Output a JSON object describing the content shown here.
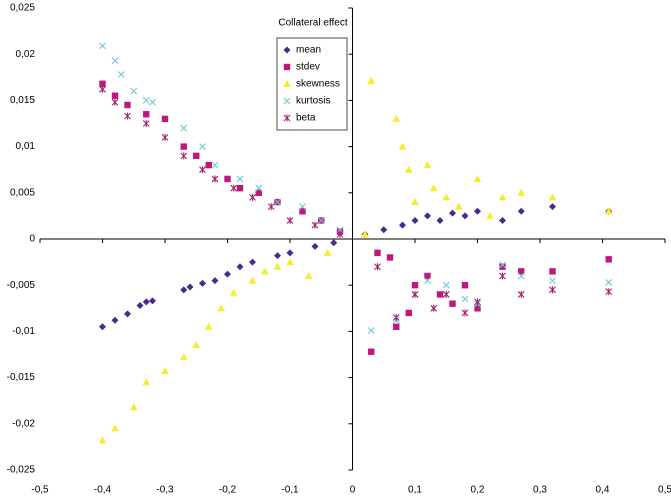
{
  "chart_data": {
    "type": "scatter",
    "legend_title": "Collateral effect",
    "xlim": [
      -0.5,
      0.5
    ],
    "ylim": [
      -0.025,
      0.025
    ],
    "xticks": [
      {
        "value": -0.5,
        "label": "-0,5"
      },
      {
        "value": -0.4,
        "label": "-0,4"
      },
      {
        "value": -0.3,
        "label": "-0,3"
      },
      {
        "value": -0.2,
        "label": "-0,2"
      },
      {
        "value": -0.1,
        "label": "-0,1"
      },
      0,
      {
        "value": 0.1,
        "label": "0,1"
      },
      {
        "value": 0.2,
        "label": "0,2"
      },
      {
        "value": 0.3,
        "label": "0,3"
      },
      {
        "value": 0.4,
        "label": "0,4"
      },
      {
        "value": 0.5,
        "label": "0,5"
      }
    ],
    "yticks": [
      {
        "value": -0.025,
        "label": "-0,025"
      },
      {
        "value": -0.02,
        "label": "-0,02"
      },
      {
        "value": -0.015,
        "label": "-0,015"
      },
      {
        "value": -0.01,
        "label": "-0,01"
      },
      {
        "value": -0.005,
        "label": "-0,005"
      },
      0,
      {
        "value": 0.005,
        "label": "0,005"
      },
      {
        "value": 0.01,
        "label": "0,01"
      },
      {
        "value": 0.015,
        "label": "0,015"
      },
      {
        "value": 0.02,
        "label": "0,02"
      },
      {
        "value": 0.025,
        "label": "0,025"
      }
    ],
    "series": [
      {
        "name": "mean",
        "color": "#4b2a8c",
        "marker": "diamond",
        "x": [
          -0.4,
          -0.38,
          -0.36,
          -0.34,
          -0.33,
          -0.32,
          -0.27,
          -0.26,
          -0.24,
          -0.22,
          -0.2,
          -0.18,
          -0.16,
          -0.12,
          -0.1,
          -0.06,
          -0.03,
          0.02,
          0.05,
          0.08,
          0.1,
          0.12,
          0.14,
          0.16,
          0.18,
          0.2,
          0.24,
          0.27,
          0.32,
          0.41
        ],
        "values": [
          -0.0095,
          -0.0088,
          -0.0081,
          -0.0072,
          -0.0068,
          -0.0067,
          -0.0055,
          -0.0052,
          -0.0048,
          -0.0045,
          -0.0038,
          -0.003,
          -0.0025,
          -0.0018,
          -0.0015,
          -0.0008,
          -0.0004,
          0.0005,
          0.001,
          0.0015,
          0.002,
          0.0025,
          0.002,
          0.0028,
          0.0025,
          0.003,
          0.002,
          0.003,
          0.0035,
          0.003
        ]
      },
      {
        "name": "stdev",
        "color": "#c0187a",
        "marker": "square",
        "x": [
          -0.4,
          -0.38,
          -0.36,
          -0.33,
          -0.3,
          -0.27,
          -0.25,
          -0.23,
          -0.2,
          -0.18,
          -0.15,
          -0.12,
          -0.08,
          -0.05,
          -0.02,
          0.03,
          0.04,
          0.06,
          0.07,
          0.09,
          0.1,
          0.12,
          0.14,
          0.16,
          0.18,
          0.2,
          0.24,
          0.27,
          0.32,
          0.41
        ],
        "values": [
          0.0168,
          0.0155,
          0.0145,
          0.0135,
          0.013,
          0.01,
          0.009,
          0.008,
          0.0065,
          0.0055,
          0.005,
          0.004,
          0.003,
          0.002,
          0.0008,
          -0.0122,
          -0.0015,
          -0.002,
          -0.0095,
          -0.008,
          -0.005,
          -0.004,
          -0.006,
          -0.007,
          -0.005,
          -0.0075,
          -0.003,
          -0.0035,
          -0.0035,
          -0.0022
        ]
      },
      {
        "name": "skewness",
        "color": "#f2ee2a",
        "marker": "triangle",
        "x": [
          -0.4,
          -0.38,
          -0.35,
          -0.33,
          -0.3,
          -0.27,
          -0.25,
          -0.23,
          -0.21,
          -0.19,
          -0.16,
          -0.14,
          -0.12,
          -0.1,
          -0.07,
          -0.04,
          0.02,
          0.03,
          0.07,
          0.08,
          0.09,
          0.1,
          0.12,
          0.13,
          0.15,
          0.17,
          0.2,
          0.22,
          0.24,
          0.27,
          0.32,
          0.41
        ],
        "values": [
          -0.0218,
          -0.0205,
          -0.0182,
          -0.0155,
          -0.0143,
          -0.0128,
          -0.0115,
          -0.0095,
          -0.0075,
          -0.0058,
          -0.0045,
          -0.0035,
          -0.003,
          -0.0025,
          -0.004,
          -0.0015,
          0.0005,
          0.0171,
          0.013,
          0.01,
          0.0075,
          0.004,
          0.008,
          0.0055,
          0.0045,
          0.0035,
          0.0065,
          0.0025,
          0.0045,
          0.005,
          0.0045,
          0.003
        ]
      },
      {
        "name": "kurtosis",
        "color": "#6cc8d2",
        "marker": "x",
        "x": [
          -0.4,
          -0.38,
          -0.37,
          -0.35,
          -0.33,
          -0.32,
          -0.27,
          -0.24,
          -0.22,
          -0.18,
          -0.15,
          -0.12,
          -0.08,
          -0.05,
          -0.02,
          0.03,
          0.07,
          0.1,
          0.12,
          0.15,
          0.18,
          0.2,
          0.24,
          0.27,
          0.32,
          0.41
        ],
        "values": [
          0.0209,
          0.0193,
          0.0178,
          0.016,
          0.015,
          0.0148,
          0.012,
          0.01,
          0.008,
          0.0065,
          0.0055,
          0.004,
          0.0035,
          0.002,
          0.001,
          -0.0099,
          -0.0088,
          -0.006,
          -0.0045,
          -0.005,
          -0.0065,
          -0.007,
          -0.0028,
          -0.004,
          -0.0045,
          -0.0047
        ]
      },
      {
        "name": "beta",
        "color": "#a3206e",
        "marker": "asterisk",
        "x": [
          -0.4,
          -0.38,
          -0.36,
          -0.33,
          -0.3,
          -0.27,
          -0.24,
          -0.22,
          -0.19,
          -0.16,
          -0.13,
          -0.1,
          -0.06,
          -0.02,
          0.04,
          0.07,
          0.1,
          0.13,
          0.15,
          0.18,
          0.2,
          0.24,
          0.27,
          0.32,
          0.41
        ],
        "values": [
          0.0162,
          0.0148,
          0.0133,
          0.0125,
          0.011,
          0.009,
          0.0075,
          0.0065,
          0.0055,
          0.0045,
          0.0035,
          0.002,
          0.0015,
          0.0005,
          -0.003,
          -0.0085,
          -0.006,
          -0.0075,
          -0.006,
          -0.008,
          -0.0068,
          -0.004,
          -0.006,
          -0.0055,
          -0.0057
        ]
      }
    ]
  }
}
